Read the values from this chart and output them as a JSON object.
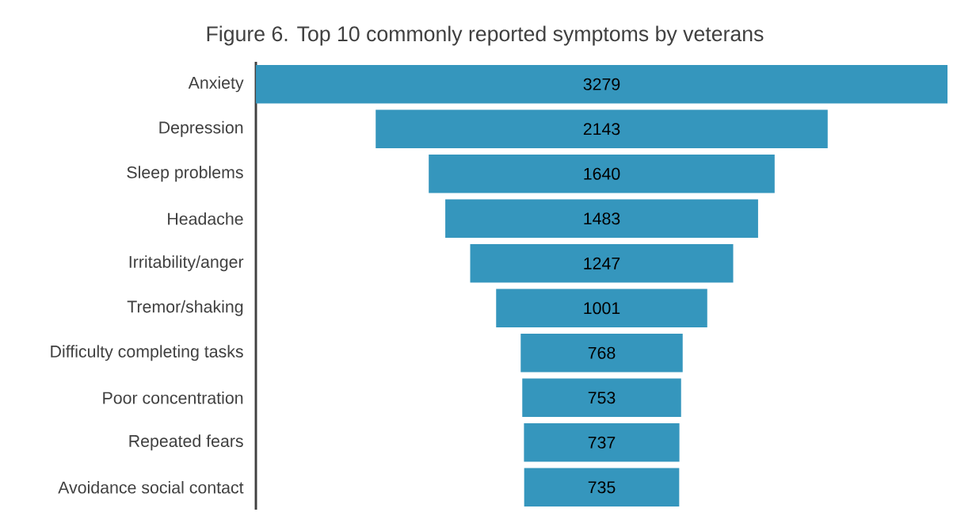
{
  "chart_data": {
    "type": "other",
    "title": "Figure 6. Top 10 commonly reported symptoms by veterans",
    "categories": [
      "Anxiety",
      "Depression",
      "Sleep problems",
      "Headache",
      "Irritability/anger",
      "Tremor/shaking",
      "Difficulty completing tasks",
      "Poor concentration",
      "Repeated fears",
      "Avoidance social contact"
    ],
    "values": [
      3279,
      2143,
      1640,
      1483,
      1247,
      1001,
      768,
      753,
      737,
      735
    ],
    "color": "#3596bd",
    "data_labels": true
  }
}
